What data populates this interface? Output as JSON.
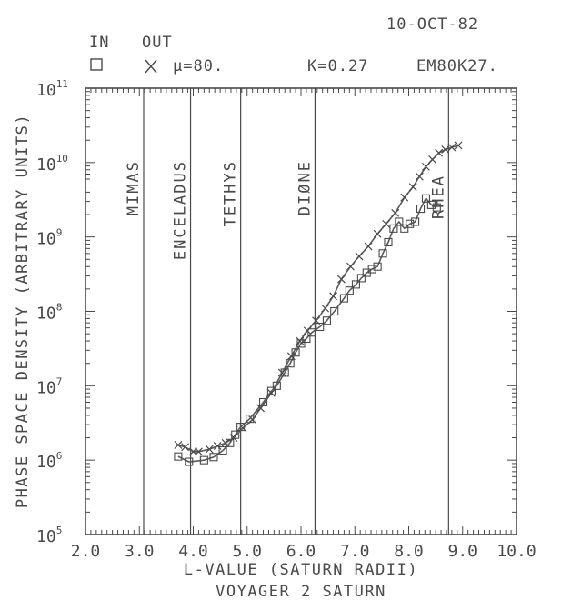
{
  "header": {
    "date": "10-OCT-82",
    "legend_in": "IN",
    "legend_out": "OUT",
    "mu": "μ=80.",
    "k": "K=0.27",
    "code": "EM80K27."
  },
  "chart_data": {
    "type": "line",
    "xlabel": "L-VALUE (SATURN RADII)",
    "subtitle": "VOYAGER 2 SATURN",
    "ylabel": "PHASE SPACE DENSITY (ARBITRARY UNITS)",
    "xlim": [
      2.0,
      10.0
    ],
    "ylim_log10": [
      5,
      11
    ],
    "y_scale": "log",
    "x_ticks": [
      "2.0",
      "3.0",
      "4.0",
      "5.0",
      "6.0",
      "7.0",
      "8.0",
      "9.0",
      "10.0"
    ],
    "y_ticks": [
      {
        "base": "10",
        "exp": "5"
      },
      {
        "base": "10",
        "exp": "6"
      },
      {
        "base": "10",
        "exp": "7"
      },
      {
        "base": "10",
        "exp": "8"
      },
      {
        "base": "10",
        "exp": "9"
      },
      {
        "base": "10",
        "exp": "10"
      },
      {
        "base": "10",
        "exp": "11"
      }
    ],
    "moons": [
      {
        "name": "MIMAS",
        "L": 3.08
      },
      {
        "name": "ENCELADUS",
        "L": 3.95
      },
      {
        "name": "TETHYS",
        "L": 4.88
      },
      {
        "name": "DIØNE",
        "L": 6.26
      },
      {
        "name": "RHEA",
        "L": 8.74
      }
    ],
    "series": [
      {
        "name": "IN",
        "marker": "square",
        "points": [
          [
            3.72,
            1120000.0
          ],
          [
            3.92,
            950000.0
          ],
          [
            4.2,
            1000000.0
          ],
          [
            4.38,
            1100000.0
          ],
          [
            4.55,
            1350000.0
          ],
          [
            4.68,
            1700000.0
          ],
          [
            4.78,
            2200000.0
          ],
          [
            4.88,
            2800000.0
          ],
          [
            5.05,
            3600000.0
          ],
          [
            5.3,
            6000000.0
          ],
          [
            5.45,
            8500000.0
          ],
          [
            5.55,
            10000000.0
          ],
          [
            5.7,
            15000000.0
          ],
          [
            5.8,
            20000000.0
          ],
          [
            5.9,
            28000000.0
          ],
          [
            6.0,
            37000000.0
          ],
          [
            6.1,
            43000000.0
          ],
          [
            6.2,
            52000000.0
          ],
          [
            6.35,
            62000000.0
          ],
          [
            6.48,
            75000000.0
          ],
          [
            6.62,
            100000000.0
          ],
          [
            6.8,
            150000000.0
          ],
          [
            6.9,
            190000000.0
          ],
          [
            7.02,
            230000000.0
          ],
          [
            7.12,
            280000000.0
          ],
          [
            7.22,
            330000000.0
          ],
          [
            7.32,
            370000000.0
          ],
          [
            7.42,
            400000000.0
          ],
          [
            7.52,
            600000000.0
          ],
          [
            7.62,
            850000000.0
          ],
          [
            7.72,
            1300000000.0
          ],
          [
            7.82,
            1600000000.0
          ],
          [
            7.92,
            1300000000.0
          ],
          [
            8.02,
            1500000000.0
          ],
          [
            8.12,
            1600000000.0
          ],
          [
            8.22,
            2400000000.0
          ],
          [
            8.32,
            3300000000.0
          ],
          [
            8.42,
            2700000000.0
          ],
          [
            8.52,
            2500000000.0
          ]
        ]
      },
      {
        "name": "OUT",
        "marker": "x",
        "points": [
          [
            3.72,
            1600000.0
          ],
          [
            3.85,
            1500000.0
          ],
          [
            4.0,
            1300000.0
          ],
          [
            4.1,
            1300000.0
          ],
          [
            4.3,
            1400000.0
          ],
          [
            4.45,
            1550000.0
          ],
          [
            4.6,
            1700000.0
          ],
          [
            4.75,
            2000000.0
          ],
          [
            4.92,
            2700000.0
          ],
          [
            5.1,
            3500000.0
          ],
          [
            5.25,
            5000000.0
          ],
          [
            5.45,
            8000000.0
          ],
          [
            5.65,
            15000000.0
          ],
          [
            5.82,
            25000000.0
          ],
          [
            5.98,
            40000000.0
          ],
          [
            6.12,
            55000000.0
          ],
          [
            6.28,
            75000000.0
          ],
          [
            6.45,
            110000000.0
          ],
          [
            6.6,
            160000000.0
          ],
          [
            6.75,
            270000000.0
          ],
          [
            6.92,
            400000000.0
          ],
          [
            7.08,
            550000000.0
          ],
          [
            7.25,
            750000000.0
          ],
          [
            7.42,
            1100000000.0
          ],
          [
            7.58,
            1500000000.0
          ],
          [
            7.75,
            2100000000.0
          ],
          [
            7.92,
            3400000000.0
          ],
          [
            8.08,
            4700000000.0
          ],
          [
            8.2,
            6500000000.0
          ],
          [
            8.32,
            8800000000.0
          ],
          [
            8.44,
            11000000000.0
          ],
          [
            8.56,
            13500000000.0
          ],
          [
            8.68,
            15000000000.0
          ],
          [
            8.8,
            16000000000.0
          ],
          [
            8.92,
            17000000000.0
          ]
        ]
      }
    ],
    "grid": false
  }
}
